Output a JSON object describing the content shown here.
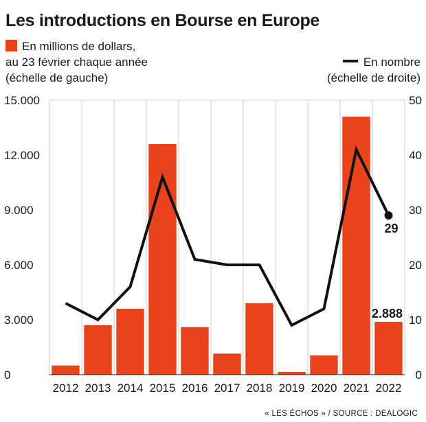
{
  "title": "Les introductions en Bourse en Europe",
  "legend": {
    "bars_line1": "En millions de dollars,",
    "bars_line2": "au 23 février chaque année",
    "bars_line3": "(échelle de gauche)",
    "line_line1": "En nombre",
    "line_line2": "(échelle de droite)"
  },
  "source": "« LES ÉCHOS » / SOURCE : DEALOGIC",
  "colors": {
    "bar": "#e8431a",
    "line": "#111111",
    "grid": "#cfcfcf"
  },
  "chart_data": {
    "type": "bar",
    "categories": [
      "2012",
      "2013",
      "2014",
      "2015",
      "2016",
      "2017",
      "2018",
      "2019",
      "2020",
      "2021",
      "2022"
    ],
    "series": [
      {
        "name": "En millions de dollars",
        "type": "bar",
        "axis": "left",
        "values": [
          500,
          2700,
          3600,
          12600,
          2600,
          1150,
          3900,
          150,
          1050,
          14100,
          2888
        ]
      },
      {
        "name": "En nombre",
        "type": "line",
        "axis": "right",
        "values": [
          13,
          10,
          16,
          36,
          21,
          20,
          20,
          9,
          12,
          41,
          29
        ]
      }
    ],
    "y_left": {
      "ticks": [
        "0",
        "3.000",
        "6.000",
        "9.000",
        "12.000",
        "15.000"
      ],
      "tick_values": [
        0,
        3000,
        6000,
        9000,
        12000,
        15000
      ],
      "ylim": [
        0,
        15000
      ]
    },
    "y_right": {
      "ticks": [
        "0",
        "10",
        "20",
        "30",
        "40",
        "50"
      ],
      "tick_values": [
        0,
        10,
        20,
        30,
        40,
        50
      ],
      "ylim": [
        0,
        50
      ]
    },
    "annotations": {
      "last_bar": "2.888",
      "last_point": "29"
    },
    "grid": "vertical"
  }
}
